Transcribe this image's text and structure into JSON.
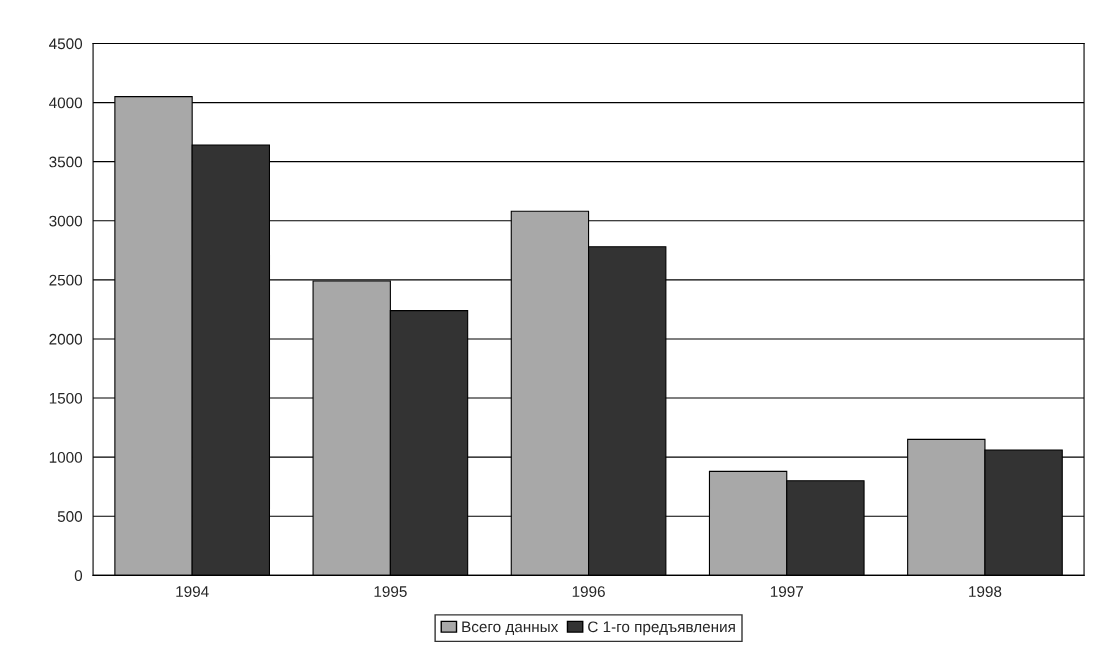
{
  "chart_data": {
    "type": "bar",
    "categories": [
      "1994",
      "1995",
      "1996",
      "1997",
      "1998"
    ],
    "series": [
      {
        "name": "Всего данных",
        "color": "#a8a8a8",
        "values": [
          4050,
          2490,
          3080,
          880,
          1150
        ]
      },
      {
        "name": "С 1-го предъявления",
        "color": "#333333",
        "values": [
          3640,
          2240,
          2780,
          800,
          1060
        ]
      }
    ],
    "ylim": [
      0,
      4500
    ],
    "yticks": [
      0,
      500,
      1000,
      1500,
      2000,
      2500,
      3000,
      3500,
      4000,
      4500
    ],
    "grid": "y",
    "legend": "bottom"
  }
}
